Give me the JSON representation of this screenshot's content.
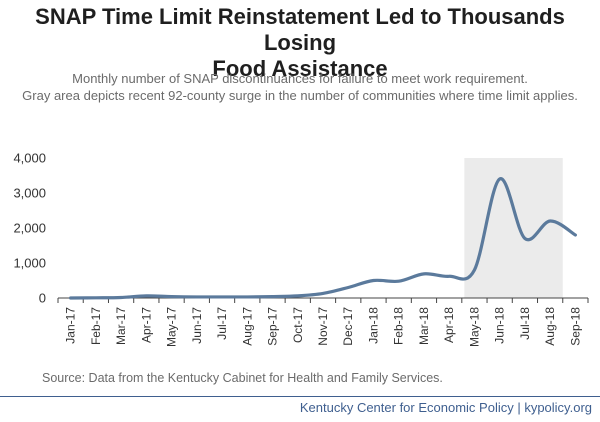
{
  "page": {
    "title_line1": "SNAP Time Limit Reinstatement Led to Thousands Losing",
    "title_line2": "Food Assistance",
    "subtitle_line1": "Monthly number of SNAP discontinuances for failure to meet work requirement.",
    "subtitle_line2": "Gray area depicts recent 92-county surge in the number of communities where time limit applies.",
    "source": "Source: Data from the Kentucky Cabinet for Health and Family Services.",
    "footer": "Kentucky Center for Economic Policy | kypolicy.org"
  },
  "colors": {
    "line": "#5b7a9c",
    "shade": "#ebebeb",
    "axis": "#444444",
    "footer": "#3f5f8f"
  },
  "chart_data": {
    "type": "line",
    "categories": [
      "Jan-17",
      "Feb-17",
      "Mar-17",
      "Apr-17",
      "May-17",
      "Jun-17",
      "Jul-17",
      "Aug-17",
      "Sep-17",
      "Oct-17",
      "Nov-17",
      "Dec-17",
      "Jan-18",
      "Feb-18",
      "Mar-18",
      "Apr-18",
      "May-18",
      "Jun-18",
      "Jul-18",
      "Aug-18",
      "Sep-18"
    ],
    "values": [
      0,
      5,
      15,
      60,
      40,
      30,
      30,
      30,
      40,
      60,
      130,
      300,
      500,
      480,
      690,
      620,
      800,
      3400,
      1700,
      2200,
      1800
    ],
    "ylim": [
      0,
      4000
    ],
    "yticks": [
      0,
      1000,
      2000,
      3000,
      4000
    ],
    "ytick_labels": [
      "0",
      "1,000",
      "2,000",
      "3,000",
      "4,000"
    ],
    "shaded_region": {
      "from": "May-18",
      "to": "Sep-18"
    },
    "grid": false,
    "legend": "none"
  }
}
